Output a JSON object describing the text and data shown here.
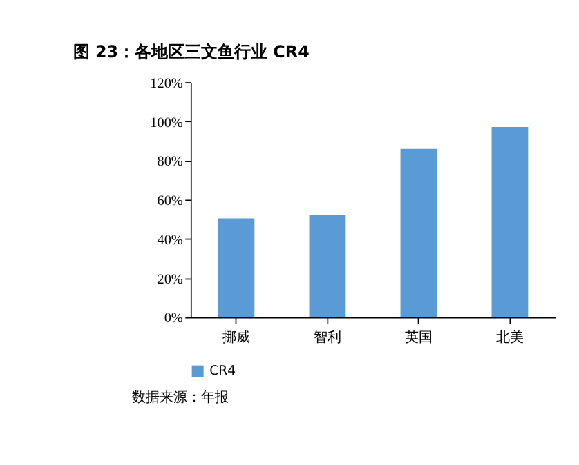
{
  "chart_data": {
    "type": "bar",
    "title": "图 23：各地区三文鱼行业 CR4",
    "categories": [
      "挪威",
      "智利",
      "英国",
      "北美"
    ],
    "series": [
      {
        "name": "CR4",
        "color": "#5b9bd5",
        "values": [
          50.5,
          52.3,
          86,
          97.2
        ]
      }
    ],
    "ylim": [
      0,
      120
    ],
    "yticks": [
      {
        "value": 0,
        "label": "0%"
      },
      {
        "value": 20,
        "label": "20%"
      },
      {
        "value": 40,
        "label": "40%"
      },
      {
        "value": 60,
        "label": "60%"
      },
      {
        "value": 80,
        "label": "80%"
      },
      {
        "value": 100,
        "label": "100%"
      },
      {
        "value": 120,
        "label": "120%"
      }
    ],
    "grid": false,
    "legend": "bottom",
    "annotations": [
      "数据来源：年报"
    ]
  }
}
